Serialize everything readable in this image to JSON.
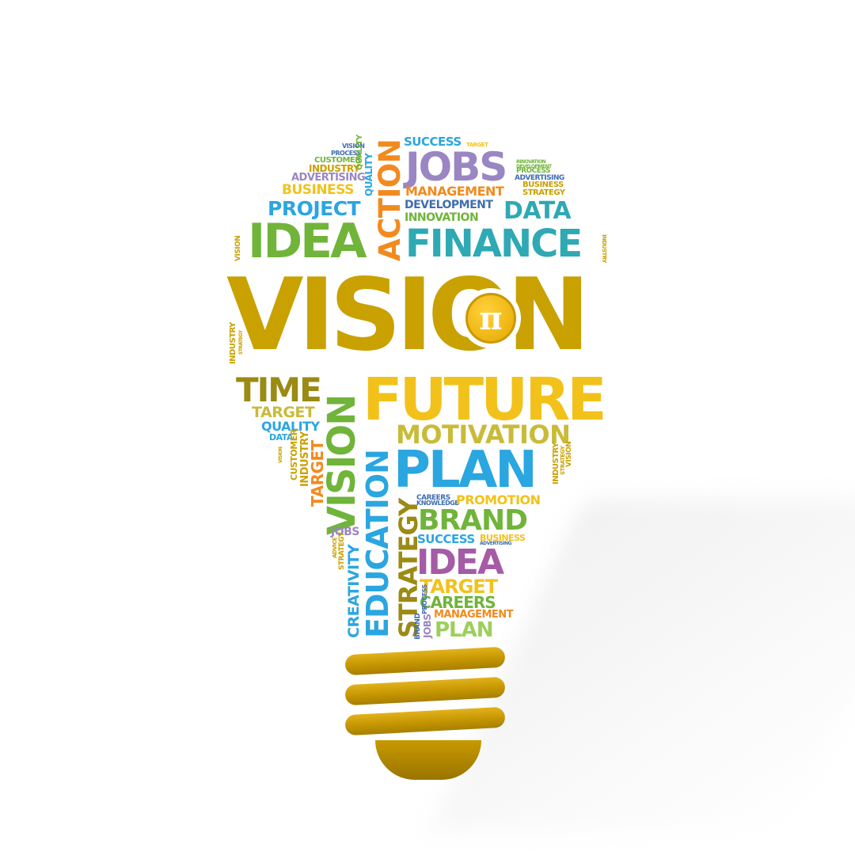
{
  "colors": {
    "gold": "#c9a100",
    "yellow": "#f2c21b",
    "green": "#70b43a",
    "blue": "#2aa6e0",
    "purple": "#9a86c2",
    "orange": "#f28a1e",
    "teal": "#2fa9b3",
    "olive": "#9b8a14",
    "magenta": "#a55ba5",
    "lightgreen": "#9ccf5b"
  },
  "logo": {
    "icon": "pi-coin-icon",
    "glyph": "π"
  },
  "words": {
    "vision_top_small": "VISION",
    "process_1": "PROCESS",
    "customer_1": "CUSTOMER",
    "quality_1": "QUALITY",
    "industry_1": "INDUSTRY",
    "advertising_1": "ADVERTISING",
    "business_1": "BUSINESS",
    "project": "PROJECT",
    "action": "ACTION",
    "success_1": "SUCCESS",
    "target_1": "TARGET",
    "jobs_1": "JOBS",
    "innovation_1": "INNOVATION",
    "development_1": "DEVELOPMENT",
    "process_2": "PROCESS",
    "advertising_2": "ADVERTISING",
    "business_2": "BUSINESS",
    "strategy_1": "STRATEGY",
    "management_1": "MANAGEMENT",
    "development_2": "DEVELOPMENT",
    "innovation_2": "INNOVATION",
    "data_1": "DATA",
    "vision_side": "VISION",
    "idea_1": "IDEA",
    "finance": "FINANCE",
    "industry_right": "INDUSTRY",
    "vision_main": "VISION",
    "industry_left": "INDUSTRY",
    "strategy_left": "STRATEGY",
    "time": "TIME",
    "target_2": "TARGET",
    "quality_2": "QUALITY",
    "data_2": "DATA",
    "customer_2": "CUSTOMER",
    "industry_2": "INDUSTRY",
    "target_3": "TARGET",
    "vision_vertical": "VISION",
    "education": "EDUCATION",
    "future": "FUTURE",
    "motivation": "MOTIVATION",
    "plan_1": "PLAN",
    "industry_3": "INDUSTRY",
    "strategy_2": "STRATEGY",
    "vision_small_right": "VISION",
    "careers_1": "CAREERS",
    "knowledge": "KNOWLEDGE",
    "promotion": "PROMOTION",
    "strategy_3": "STRATEGY",
    "brand_1": "BRAND",
    "jobs_2": "JOBS",
    "advice": "ADVICE",
    "strategy_4": "STRATEGY",
    "creativity": "CREATIVITY",
    "success_2": "SUCCESS",
    "business_3": "BUSINESS",
    "advertising_3": "ADVERTISING",
    "idea_2": "IDEA",
    "target_4": "TARGET",
    "careers_2": "CAREERS",
    "brand_2": "BRAND",
    "process_3": "PROCESS",
    "jobs_3": "JOBS",
    "management_2": "MANAGEMENT",
    "plan_2": "PLAN"
  }
}
